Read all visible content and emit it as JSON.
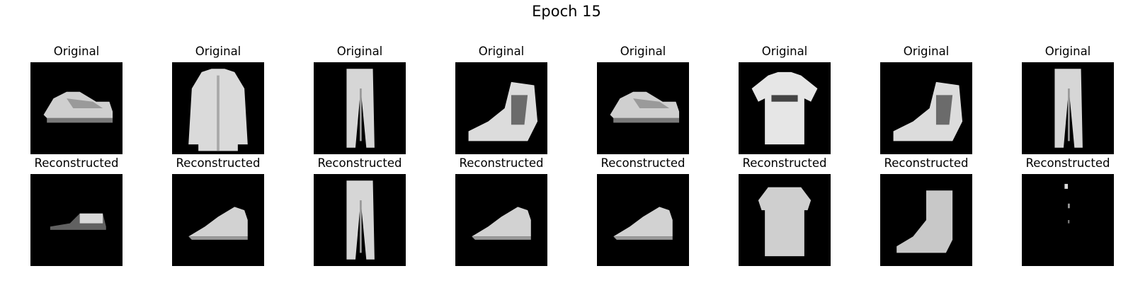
{
  "figure": {
    "title": "Epoch 15",
    "rows": [
      {
        "label": "Original",
        "items": [
          {
            "icon": "sneaker-image"
          },
          {
            "icon": "coat-image"
          },
          {
            "icon": "trousers-image"
          },
          {
            "icon": "ankle-boot-image"
          },
          {
            "icon": "sneaker-image"
          },
          {
            "icon": "tshirt-image"
          },
          {
            "icon": "ankle-boot-image"
          },
          {
            "icon": "trousers-image"
          }
        ]
      },
      {
        "label": "Reconstructed",
        "items": [
          {
            "icon": "faint-sneaker-image"
          },
          {
            "icon": "blurred-sneaker-image"
          },
          {
            "icon": "trousers-image"
          },
          {
            "icon": "blurred-sneaker-image"
          },
          {
            "icon": "blurred-sneaker-image"
          },
          {
            "icon": "blurred-tshirt-image"
          },
          {
            "icon": "blurred-boot-image"
          },
          {
            "icon": "near-empty-image"
          }
        ]
      }
    ],
    "colors": {
      "background": "#ffffff",
      "image_bg": "#000000",
      "foreground": "#e6e6e6"
    }
  }
}
